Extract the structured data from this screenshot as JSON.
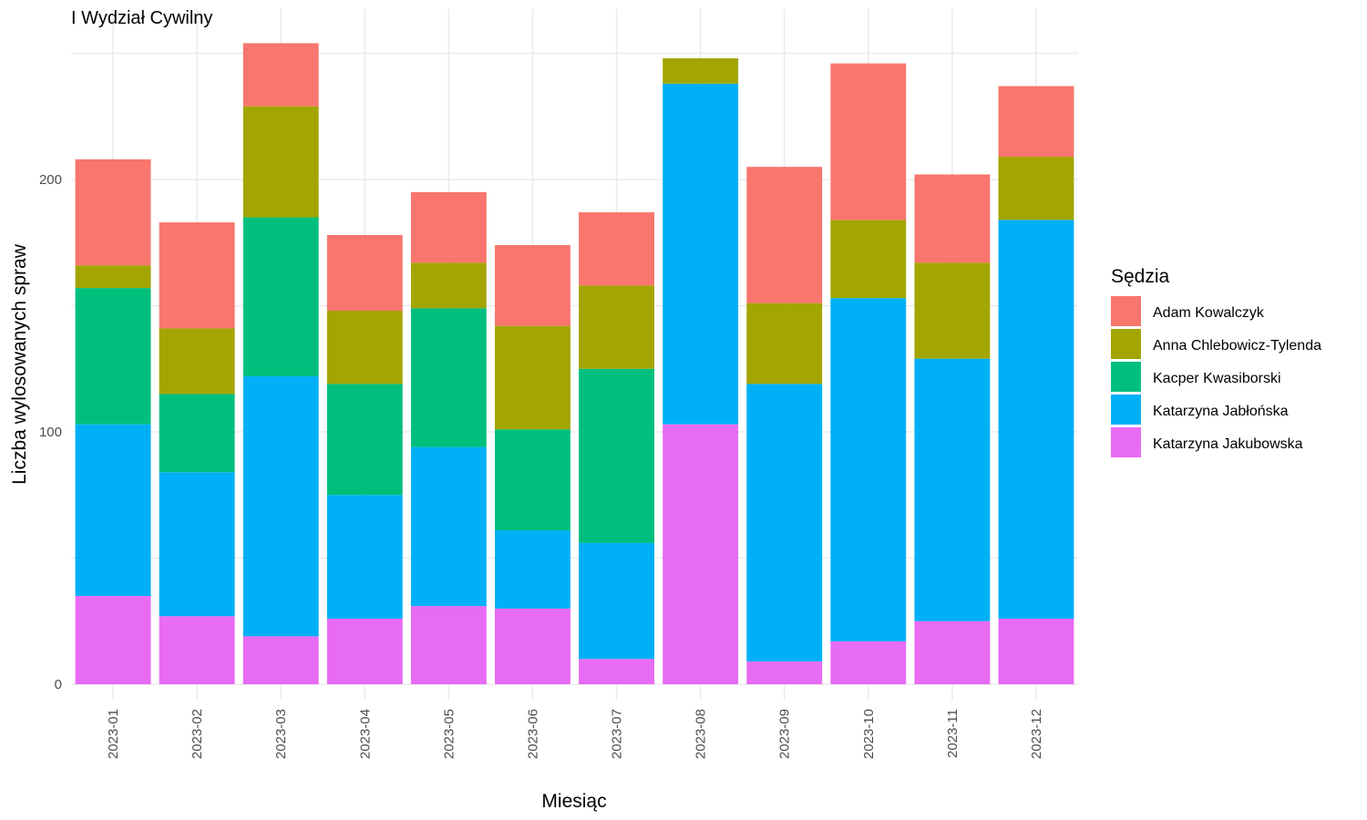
{
  "chart_data": {
    "type": "bar",
    "stacked": true,
    "title": "I Wydział Cywilny",
    "xlabel": "Miesiąc",
    "ylabel": "Liczba wylosowanych spraw",
    "ylim": [
      0,
      260
    ],
    "yticks": [
      0,
      100,
      200
    ],
    "grid": true,
    "legend_title": "Sędzia",
    "legend_position": "right",
    "categories": [
      "2023-01",
      "2023-02",
      "2023-03",
      "2023-04",
      "2023-05",
      "2023-06",
      "2023-07",
      "2023-08",
      "2023-09",
      "2023-10",
      "2023-11",
      "2023-12"
    ],
    "series": [
      {
        "name": "Adam Kowalczyk",
        "color": "#F8766D",
        "values": [
          42,
          42,
          25,
          30,
          28,
          32,
          29,
          0,
          54,
          62,
          35,
          28
        ]
      },
      {
        "name": "Anna Chlebowicz-Tylenda",
        "color": "#A3A500",
        "values": [
          9,
          26,
          44,
          29,
          18,
          41,
          33,
          10,
          32,
          31,
          38,
          25
        ]
      },
      {
        "name": "Kacper Kwasiborski",
        "color": "#00BF7D",
        "values": [
          54,
          31,
          63,
          44,
          55,
          40,
          69,
          0,
          0,
          0,
          0,
          0
        ]
      },
      {
        "name": "Katarzyna Jabłońska",
        "color": "#00B0F6",
        "values": [
          68,
          57,
          103,
          49,
          63,
          31,
          46,
          135,
          110,
          136,
          104,
          158
        ]
      },
      {
        "name": "Katarzyna Jakubowska",
        "color": "#E76BF3",
        "values": [
          35,
          27,
          19,
          26,
          31,
          30,
          10,
          103,
          9,
          17,
          25,
          26
        ]
      }
    ]
  }
}
